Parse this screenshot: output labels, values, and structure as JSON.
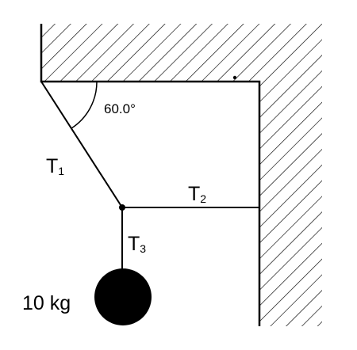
{
  "angle": {
    "value": "60.0°"
  },
  "tension1": {
    "base": "T",
    "sub": "1"
  },
  "tension2": {
    "base": "T",
    "sub": "2"
  },
  "tension3": {
    "base": "T",
    "sub": "3"
  },
  "mass": {
    "label": "10 kg"
  }
}
